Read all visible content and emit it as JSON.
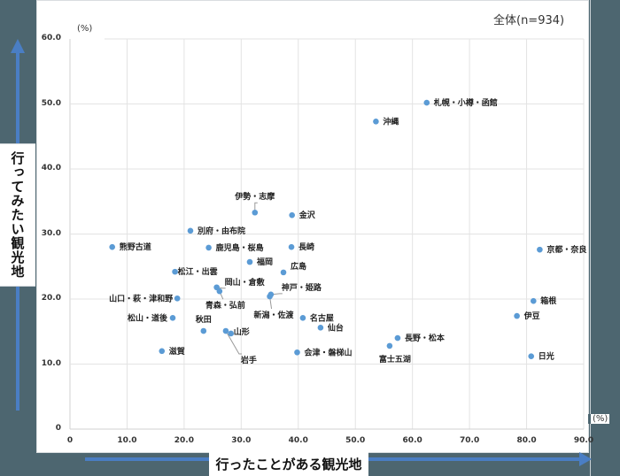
{
  "chart_data": {
    "type": "scatter",
    "title": "",
    "subtitle": "全体(n=934)",
    "xlabel": "行ったことがある観光地",
    "ylabel": "行ってみたい観光地",
    "x_unit": "(%)",
    "y_unit": "(%)",
    "xlim": [
      0,
      90
    ],
    "ylim": [
      0,
      60
    ],
    "x_ticks": [
      "0",
      "10.0",
      "20.0",
      "30.0",
      "40.0",
      "50.0",
      "60.0",
      "70.0",
      "80.0",
      "90.0"
    ],
    "y_ticks": [
      "0",
      "10.0",
      "20.0",
      "30.0",
      "40.0",
      "50.0",
      "60.0"
    ],
    "grid": true,
    "marker_color": "#5b9bd5",
    "points": [
      {
        "label": "札幌・小樽・函館",
        "x": 62.5,
        "y": 50.2
      },
      {
        "label": "沖縄",
        "x": 53.6,
        "y": 47.3
      },
      {
        "label": "京都・奈良",
        "x": 82.3,
        "y": 27.6
      },
      {
        "label": "伊勢・志摩",
        "x": 32.4,
        "y": 33.3
      },
      {
        "label": "金沢",
        "x": 38.9,
        "y": 32.9
      },
      {
        "label": "別府・由布院",
        "x": 21.1,
        "y": 30.5
      },
      {
        "label": "熊野古道",
        "x": 7.4,
        "y": 28.0
      },
      {
        "label": "鹿児島・桜島",
        "x": 24.3,
        "y": 27.9
      },
      {
        "label": "長崎",
        "x": 38.8,
        "y": 28.0
      },
      {
        "label": "福岡",
        "x": 31.5,
        "y": 25.7
      },
      {
        "label": "広島",
        "x": 37.4,
        "y": 24.1
      },
      {
        "label": "松江・出雲",
        "x": 18.4,
        "y": 24.2
      },
      {
        "label": "岡山・倉敷",
        "x": 25.7,
        "y": 21.8
      },
      {
        "label": "青森・弘前",
        "x": 26.2,
        "y": 21.2
      },
      {
        "label": "神戸・姫路",
        "x": 35.2,
        "y": 20.7
      },
      {
        "label": "新潟・佐渡",
        "x": 35.0,
        "y": 20.4
      },
      {
        "label": "山口・萩・津和野",
        "x": 18.8,
        "y": 20.1
      },
      {
        "label": "箱根",
        "x": 81.2,
        "y": 19.7
      },
      {
        "label": "名古屋",
        "x": 40.8,
        "y": 17.1
      },
      {
        "label": "伊豆",
        "x": 78.3,
        "y": 17.4
      },
      {
        "label": "松山・道後",
        "x": 18.0,
        "y": 17.1
      },
      {
        "label": "仙台",
        "x": 43.9,
        "y": 15.6
      },
      {
        "label": "秋田",
        "x": 23.4,
        "y": 15.1
      },
      {
        "label": "岩手",
        "x": 27.3,
        "y": 15.1
      },
      {
        "label": "山形",
        "x": 28.2,
        "y": 14.7
      },
      {
        "label": "長野・松本",
        "x": 57.4,
        "y": 14.0
      },
      {
        "label": "富士五湖",
        "x": 56.0,
        "y": 12.8
      },
      {
        "label": "滋賀",
        "x": 16.1,
        "y": 12.0
      },
      {
        "label": "会津・磐梯山",
        "x": 39.8,
        "y": 11.8
      },
      {
        "label": "日光",
        "x": 80.8,
        "y": 11.2
      }
    ]
  },
  "label_layout": {
    "札幌・小樽・函館": {
      "dx": 8,
      "dy": 3,
      "anchor": "start"
    },
    "沖縄": {
      "dx": 8,
      "dy": 3,
      "anchor": "start"
    },
    "京都・奈良": {
      "dx": 8,
      "dy": 3,
      "anchor": "start"
    },
    "伊勢・志摩": {
      "dx": 0,
      "dy": -15,
      "anchor": "middle",
      "leader": true
    },
    "金沢": {
      "dx": 8,
      "dy": 3,
      "anchor": "start"
    },
    "別府・由布院": {
      "dx": 8,
      "dy": 3,
      "anchor": "start"
    },
    "熊野古道": {
      "dx": 8,
      "dy": 3,
      "anchor": "start"
    },
    "鹿児島・桜島": {
      "dx": 8,
      "dy": 3,
      "anchor": "start"
    },
    "長崎": {
      "dx": 8,
      "dy": 3,
      "anchor": "start"
    },
    "福岡": {
      "dx": 8,
      "dy": 3,
      "anchor": "start"
    },
    "広島": {
      "dx": 8,
      "dy": -4,
      "anchor": "start"
    },
    "松江・出雲": {
      "dx": 3,
      "dy": 3,
      "anchor": "start"
    },
    "岡山・倉敷": {
      "dx": 9,
      "dy": -3,
      "anchor": "start",
      "leader": true
    },
    "青森・弘前": {
      "dx": -16,
      "dy": 19,
      "anchor": "start",
      "leader": true
    },
    "神戸・姫路": {
      "dx": 12,
      "dy": -5,
      "anchor": "start",
      "leader": true
    },
    "新潟・佐渡": {
      "dx": -18,
      "dy": 24,
      "anchor": "start",
      "leader": true
    },
    "山口・萩・津和野": {
      "dx": -5,
      "dy": 3,
      "anchor": "end"
    },
    "箱根": {
      "dx": 8,
      "dy": 3,
      "anchor": "start"
    },
    "名古屋": {
      "dx": 8,
      "dy": 3,
      "anchor": "start"
    },
    "伊豆": {
      "dx": 8,
      "dy": 3,
      "anchor": "start"
    },
    "松山・道後": {
      "dx": -6,
      "dy": 3,
      "anchor": "end"
    },
    "仙台": {
      "dx": 8,
      "dy": 3,
      "anchor": "start"
    },
    "秋田": {
      "dx": 0,
      "dy": -10,
      "anchor": "middle"
    },
    "岩手": {
      "dx": 17,
      "dy": 36,
      "anchor": "start",
      "leader": true
    },
    "山形": {
      "dx": 3,
      "dy": 1,
      "anchor": "start"
    },
    "長野・松本": {
      "dx": 8,
      "dy": 3,
      "anchor": "start"
    },
    "富士五湖": {
      "dx": -12,
      "dy": 18,
      "anchor": "start"
    },
    "滋賀": {
      "dx": 8,
      "dy": 3,
      "anchor": "start"
    },
    "会津・磐梯山": {
      "dx": 8,
      "dy": 3,
      "anchor": "start"
    },
    "日光": {
      "dx": 8,
      "dy": 3,
      "anchor": "start"
    }
  }
}
